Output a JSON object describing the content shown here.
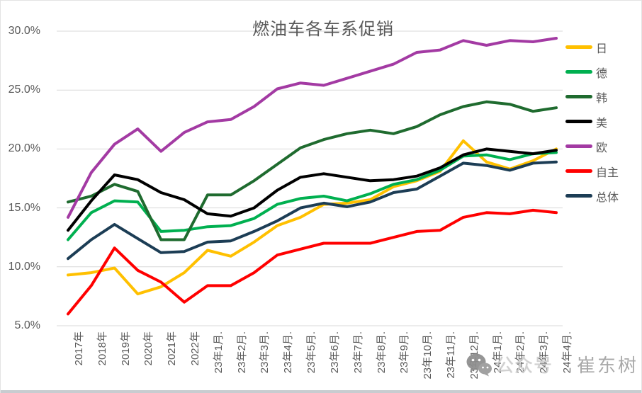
{
  "title": "燃油车各车系促销",
  "watermark": {
    "icon": "wechat-icon",
    "account_type": "公众号",
    "account_name": "崔东树"
  },
  "chart_data": {
    "type": "line",
    "title": "燃油车各车系促销",
    "xlabel": "",
    "ylabel": "",
    "ylim": [
      5.0,
      30.0
    ],
    "grid": true,
    "legend_position": "right",
    "y_axis": {
      "min": 5,
      "max": 30,
      "step": 5,
      "tick_labels": [
        "5.0%",
        "10.0%",
        "15.0%",
        "20.0%",
        "25.0%",
        "30.0%"
      ]
    },
    "categories": [
      "2017年",
      "2018年",
      "2019年",
      "2020年",
      "2021年",
      "2022年",
      "23年1月.",
      "23年2月.",
      "23年3月.",
      "23年4月.",
      "23年5月.",
      "23年6月.",
      "23年7月.",
      "23年8月.",
      "23年9月.",
      "23年10月.",
      "23年11月.",
      "23年12月.",
      "24年1月.",
      "24年2月.",
      "24年3月.",
      "24年4月."
    ],
    "series": [
      {
        "name": "日",
        "color": "#FFC000",
        "values": [
          9.3,
          9.5,
          9.9,
          7.7,
          8.3,
          9.5,
          11.4,
          10.9,
          12.1,
          13.5,
          14.2,
          15.3,
          15.4,
          15.7,
          16.8,
          17.3,
          18.1,
          20.7,
          18.9,
          18.3,
          19.0,
          20.0
        ]
      },
      {
        "name": "德",
        "color": "#00B050",
        "values": [
          12.3,
          14.6,
          15.6,
          15.5,
          13.0,
          13.1,
          13.4,
          13.5,
          14.1,
          15.3,
          15.8,
          16.0,
          15.6,
          16.2,
          17.0,
          17.4,
          18.2,
          19.4,
          19.5,
          19.1,
          19.6,
          19.7
        ]
      },
      {
        "name": "韩",
        "color": "#1F6B2F",
        "values": [
          15.5,
          16.0,
          17.0,
          16.4,
          12.3,
          12.3,
          16.1,
          16.1,
          17.3,
          18.7,
          20.1,
          20.8,
          21.3,
          21.6,
          21.3,
          21.9,
          22.9,
          23.6,
          24.0,
          23.8,
          23.2,
          23.5
        ]
      },
      {
        "name": "美",
        "color": "#000000",
        "values": [
          13.1,
          15.6,
          17.8,
          17.4,
          16.3,
          15.7,
          14.5,
          14.3,
          15.0,
          16.5,
          17.6,
          17.9,
          17.6,
          17.3,
          17.4,
          17.7,
          18.4,
          19.5,
          20.0,
          19.8,
          19.6,
          19.9
        ]
      },
      {
        "name": "欧",
        "color": "#A33AA3",
        "values": [
          14.2,
          18.0,
          20.4,
          21.7,
          19.8,
          21.4,
          22.3,
          22.5,
          23.6,
          25.1,
          25.6,
          25.4,
          26.0,
          26.6,
          27.2,
          28.2,
          28.4,
          29.2,
          28.8,
          29.2,
          29.1,
          29.4
        ]
      },
      {
        "name": "自主",
        "color": "#FF0000",
        "values": [
          6.0,
          8.4,
          11.6,
          9.7,
          8.7,
          7.0,
          8.4,
          8.4,
          9.5,
          11.0,
          11.5,
          12.0,
          12.0,
          12.0,
          12.5,
          13.0,
          13.1,
          14.2,
          14.6,
          14.5,
          14.8,
          14.6
        ]
      },
      {
        "name": "总体",
        "color": "#1C3D55",
        "values": [
          10.7,
          12.3,
          13.6,
          12.4,
          11.2,
          11.3,
          12.1,
          12.2,
          13.0,
          13.9,
          15.0,
          15.4,
          15.1,
          15.5,
          16.3,
          16.6,
          17.7,
          18.8,
          18.6,
          18.2,
          18.8,
          18.9
        ]
      }
    ]
  }
}
